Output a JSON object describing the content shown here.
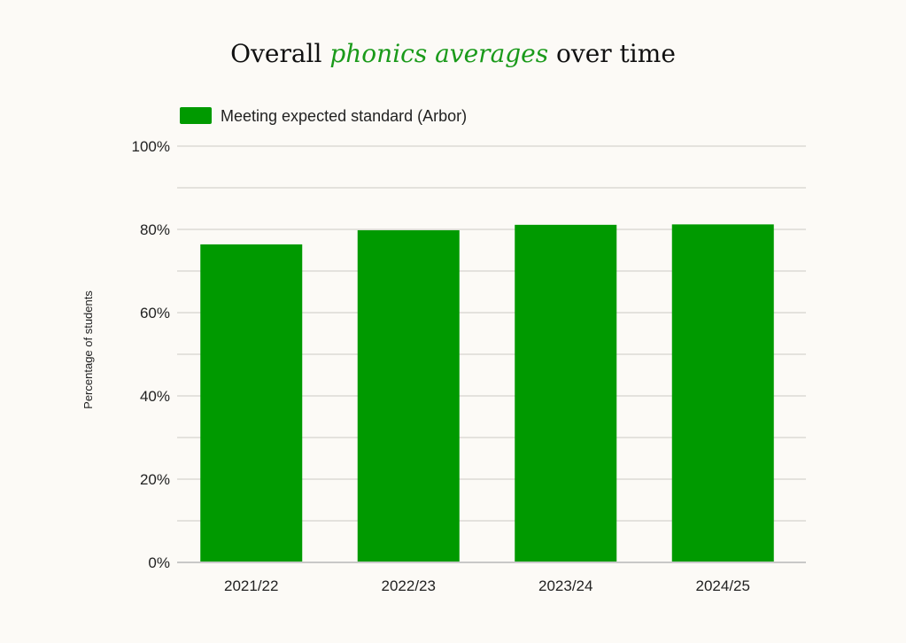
{
  "title": {
    "prefix": "Overall ",
    "highlight": "phonics averages",
    "suffix": " over time"
  },
  "colors": {
    "bar": "#009a00",
    "highlight": "#1a9a1a",
    "grid": "#e4e2dd",
    "axis": "#c8c8c8"
  },
  "chart_data": {
    "type": "bar",
    "title": "Overall phonics averages over time",
    "categories": [
      "2021/22",
      "2022/23",
      "2023/24",
      "2024/25"
    ],
    "series": [
      {
        "name": "Meeting expected standard (Arbor)",
        "values": [
          76.4,
          79.8,
          81.1,
          81.2
        ]
      }
    ],
    "xlabel": "",
    "ylabel": "Percentage of students",
    "ylim": [
      0,
      100
    ],
    "yticks": [
      "0%",
      "20%",
      "40%",
      "60%",
      "80%",
      "100%"
    ],
    "grid": true,
    "legend": "top-left"
  }
}
